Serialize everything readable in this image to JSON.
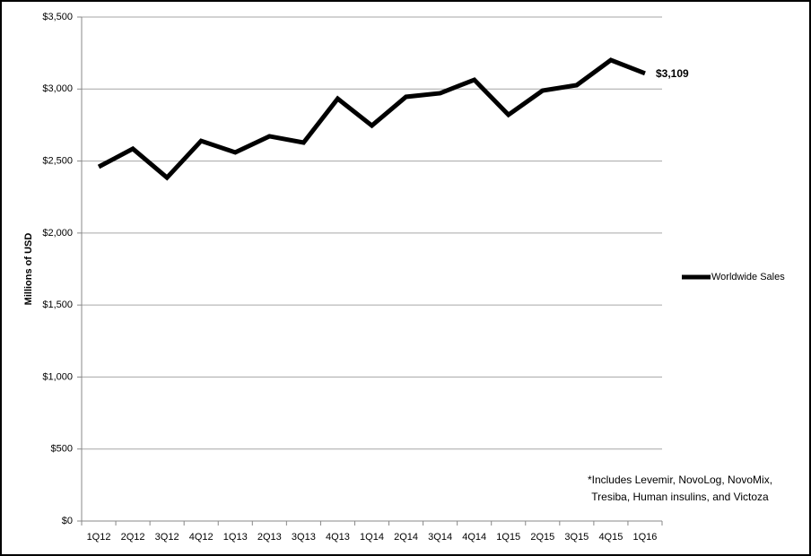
{
  "chart_data": {
    "type": "line",
    "y_label": "Millions of USD",
    "categories": [
      "1Q12",
      "2Q12",
      "3Q12",
      "4Q12",
      "1Q13",
      "2Q13",
      "3Q13",
      "4Q13",
      "1Q14",
      "2Q14",
      "3Q14",
      "4Q14",
      "1Q15",
      "2Q15",
      "3Q15",
      "4Q15",
      "1Q16"
    ],
    "series": [
      {
        "name": "Worldwide Sales",
        "color": "#000000",
        "values": [
          2460,
          2585,
          2385,
          2640,
          2560,
          2672,
          2628,
          2933,
          2746,
          2946,
          2971,
          3064,
          2821,
          2989,
          3027,
          3201,
          3109
        ],
        "value_labels": [
          null,
          null,
          null,
          null,
          null,
          null,
          null,
          null,
          null,
          null,
          null,
          null,
          null,
          null,
          null,
          null,
          "$3,109"
        ]
      }
    ],
    "ylim": [
      0,
      3500
    ],
    "yticks": [
      {
        "value": 0,
        "label": "$0"
      },
      {
        "value": 500,
        "label": "$500"
      },
      {
        "value": 1000,
        "label": "$1,000"
      },
      {
        "value": 1500,
        "label": "$1,500"
      },
      {
        "value": 2000,
        "label": "$2,000"
      },
      {
        "value": 2500,
        "label": "$2,500"
      },
      {
        "value": 3000,
        "label": "$3,000"
      },
      {
        "value": 3500,
        "label": "$3,500"
      }
    ],
    "grid": true,
    "legend": "right",
    "annotations": [
      "*Includes Levemir, NovoLog, NovoMix,",
      "Tresiba, Human insulins, and Victoza"
    ]
  }
}
